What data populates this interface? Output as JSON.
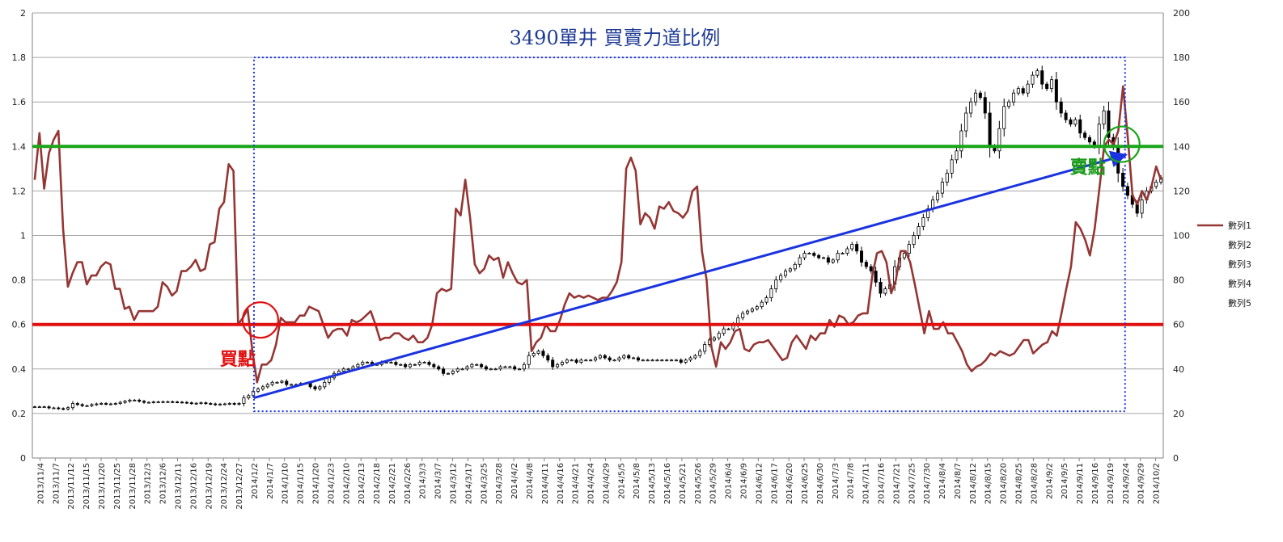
{
  "chart_data": {
    "type": "line",
    "title": "3490單井 買賣力道比例",
    "y_left": {
      "min": 0,
      "max": 2,
      "step": 0.2,
      "ticks": [
        "0",
        "0.2",
        "0.4",
        "0.6",
        "0.8",
        "1",
        "1.2",
        "1.4",
        "1.6",
        "1.8",
        "2"
      ]
    },
    "y_right": {
      "min": 0,
      "max": 200,
      "step": 20,
      "ticks": [
        "0",
        "20",
        "40",
        "60",
        "80",
        "100",
        "120",
        "140",
        "160",
        "180",
        "200"
      ]
    },
    "grid": true,
    "legend_position": "right",
    "legend": [
      "數列1",
      "數列2",
      "數列3",
      "數列4",
      "數列5"
    ],
    "x_tick_labels": [
      "2013/11/4",
      "2013/11/7",
      "2013/11/12",
      "2013/11/15",
      "2013/11/20",
      "2013/11/25",
      "2013/11/28",
      "2013/12/3",
      "2013/12/6",
      "2013/12/11",
      "2013/12/16",
      "2013/12/19",
      "2013/12/24",
      "2013/12/27",
      "2014/1/2",
      "2014/1/7",
      "2014/1/10",
      "2014/1/15",
      "2014/1/20",
      "2014/1/23",
      "2014/2/10",
      "2014/2/13",
      "2014/2/18",
      "2014/2/21",
      "2014/2/26",
      "2014/3/3",
      "2014/3/7",
      "2014/3/12",
      "2014/3/17",
      "2014/3/25",
      "2014/3/28",
      "2014/4/2",
      "2014/4/8",
      "2014/4/11",
      "2014/4/16",
      "2014/4/21",
      "2014/4/24",
      "2014/4/29",
      "2014/5/5",
      "2014/5/8",
      "2014/5/13",
      "2014/5/16",
      "2014/5/21",
      "2014/5/26",
      "2014/5/29",
      "2014/6/4",
      "2014/6/9",
      "2014/6/12",
      "2014/6/17",
      "2014/6/20",
      "2014/6/25",
      "2014/6/30",
      "2014/7/3",
      "2014/7/8",
      "2014/7/11",
      "2014/7/16",
      "2014/7/21",
      "2014/7/25",
      "2014/7/30",
      "2014/8/4",
      "2014/8/7",
      "2014/8/12",
      "2014/8/15",
      "2014/8/20",
      "2014/8/25",
      "2014/8/28",
      "2014/9/2",
      "2014/9/5",
      "2014/9/11",
      "2014/9/16",
      "2014/9/19",
      "2014/9/24",
      "2014/9/29",
      "2014/10/2"
    ],
    "series": [
      {
        "name": "數列1",
        "axis": "left",
        "color": "#943634",
        "values": [
          1.25,
          1.46,
          1.21,
          1.37,
          1.43,
          1.47,
          1.03,
          0.77,
          0.83,
          0.88,
          0.88,
          0.78,
          0.82,
          0.82,
          0.86,
          0.88,
          0.87,
          0.76,
          0.76,
          0.67,
          0.68,
          0.62,
          0.66,
          0.66,
          0.66,
          0.66,
          0.68,
          0.79,
          0.77,
          0.73,
          0.75,
          0.84,
          0.84,
          0.86,
          0.89,
          0.84,
          0.85,
          0.96,
          0.97,
          1.12,
          1.15,
          1.32,
          1.29,
          0.6,
          0.63,
          0.67,
          0.48,
          0.34,
          0.42,
          0.42,
          0.44,
          0.51,
          0.63,
          0.61,
          0.61,
          0.61,
          0.64,
          0.64,
          0.68,
          0.67,
          0.66,
          0.6,
          0.54,
          0.57,
          0.58,
          0.58,
          0.55,
          0.62,
          0.61,
          0.62,
          0.64,
          0.66,
          0.6,
          0.53,
          0.54,
          0.54,
          0.56,
          0.56,
          0.54,
          0.53,
          0.55,
          0.52,
          0.52,
          0.54,
          0.6,
          0.74,
          0.76,
          0.75,
          0.76,
          1.12,
          1.09,
          1.25,
          1.08,
          0.87,
          0.83,
          0.85,
          0.91,
          0.89,
          0.9,
          0.81,
          0.88,
          0.83,
          0.79,
          0.78,
          0.8,
          0.48,
          0.52,
          0.54,
          0.6,
          0.57,
          0.57,
          0.62,
          0.69,
          0.74,
          0.72,
          0.73,
          0.72,
          0.73,
          0.72,
          0.71,
          0.72,
          0.72,
          0.75,
          0.79,
          0.88,
          1.3,
          1.35,
          1.29,
          1.05,
          1.1,
          1.08,
          1.03,
          1.13,
          1.12,
          1.15,
          1.11,
          1.1,
          1.08,
          1.11,
          1.2,
          1.22,
          0.93,
          0.8,
          0.5,
          0.41,
          0.52,
          0.49,
          0.52,
          0.57,
          0.58,
          0.49,
          0.48,
          0.51,
          0.52,
          0.52,
          0.53,
          0.5,
          0.47,
          0.44,
          0.45,
          0.52,
          0.55,
          0.52,
          0.49,
          0.55,
          0.53,
          0.56,
          0.56,
          0.62,
          0.59,
          0.64,
          0.63,
          0.6,
          0.61,
          0.64,
          0.65,
          0.65,
          0.82,
          0.92,
          0.93,
          0.88,
          0.74,
          0.8,
          0.93,
          0.93,
          0.88,
          0.78,
          0.67,
          0.56,
          0.66,
          0.58,
          0.58,
          0.61,
          0.56,
          0.56,
          0.52,
          0.48,
          0.42,
          0.39,
          0.41,
          0.42,
          0.44,
          0.47,
          0.46,
          0.48,
          0.47,
          0.46,
          0.47,
          0.5,
          0.53,
          0.53,
          0.47,
          0.49,
          0.51,
          0.52,
          0.57,
          0.55,
          0.65,
          0.76,
          0.86,
          1.06,
          1.03,
          0.98,
          0.91,
          1.03,
          1.21,
          1.4,
          1.43,
          1.41,
          1.47,
          1.67,
          1.44,
          1.18,
          1.14,
          1.2,
          1.16,
          1.22,
          1.31,
          1.25
        ]
      },
      {
        "name": "數列2",
        "axis": "right",
        "type": "candlestick",
        "values": [
          23,
          23,
          23,
          22.5,
          22.5,
          22.2,
          22,
          22.6,
          24.5,
          24,
          23.5,
          23.5,
          24,
          24.3,
          24.5,
          24.2,
          24.3,
          24.5,
          25,
          25.5,
          26,
          26,
          25.5,
          25,
          25,
          25.2,
          25.2,
          25.3,
          25.3,
          25.2,
          25.1,
          25,
          24.8,
          24.5,
          24.6,
          24.8,
          24.5,
          24.3,
          24,
          24.2,
          24.3,
          24.5,
          24.2,
          24.5,
          27,
          28,
          30,
          31,
          32,
          33,
          34,
          34,
          34.5,
          33,
          33,
          33,
          33.5,
          33.5,
          32,
          31,
          32,
          34,
          36,
          38,
          39,
          40,
          40,
          41,
          42,
          43,
          43,
          42,
          42,
          43,
          43,
          43,
          42,
          42,
          41,
          42,
          42,
          43,
          43,
          42,
          41,
          40,
          38,
          38,
          39,
          40,
          40,
          41,
          42,
          42,
          41,
          40,
          40,
          40,
          41,
          41,
          41,
          40,
          40,
          42,
          46,
          47,
          48,
          46,
          44,
          41,
          42,
          43,
          44,
          44,
          43,
          44,
          44,
          44,
          45,
          46,
          45,
          44,
          44,
          45,
          46,
          45,
          45,
          44,
          44,
          44,
          44,
          44,
          44,
          44,
          44,
          44,
          43,
          44,
          45,
          46,
          48,
          51,
          53,
          54,
          56,
          58,
          58,
          60,
          63,
          65,
          66,
          67,
          68,
          70,
          72,
          76,
          80,
          82,
          84,
          85,
          87,
          90,
          92,
          92,
          91,
          90,
          90,
          88,
          89,
          92,
          92,
          94,
          96,
          93,
          88,
          86,
          84,
          79,
          74,
          76,
          78,
          86,
          90,
          92,
          96,
          100,
          104,
          108,
          112,
          116,
          119,
          124,
          128,
          134,
          138,
          147,
          155,
          160,
          164,
          162,
          155,
          140,
          138,
          148,
          158,
          160,
          164,
          166,
          164,
          168,
          172,
          174,
          168,
          166,
          170,
          160,
          155,
          152,
          150,
          152,
          146,
          144,
          142,
          140,
          150,
          156,
          144,
          140,
          128,
          122,
          118,
          114,
          110,
          116,
          120,
          122,
          124,
          126
        ]
      }
    ],
    "annotations": {
      "buy_label": "買點",
      "sell_label": "賣點",
      "buy_line_value": 0.6,
      "sell_line_value": 1.4,
      "buy_circle": {
        "x_label": "2014/1/2",
        "y": 0.62
      },
      "sell_circle": {
        "x_label": "2014/9/24",
        "y": 1.41
      },
      "trend_arrow": {
        "from": {
          "x_label": "2014/1/2",
          "y": 0.27
        },
        "to": {
          "x_label": "2014/9/19",
          "y": 1.36
        }
      },
      "highlight_box": {
        "x_from": "2014/1/2",
        "x_to": "2014/9/24",
        "y_from": 0.21,
        "y_to": 1.8
      }
    },
    "colors": {
      "series1": "#943634",
      "buy_line": "#e01010",
      "sell_line": "#1aa51a",
      "trend_arrow": "#1a33e0",
      "box": "#1a33e0",
      "title": "#1f3b96"
    }
  }
}
